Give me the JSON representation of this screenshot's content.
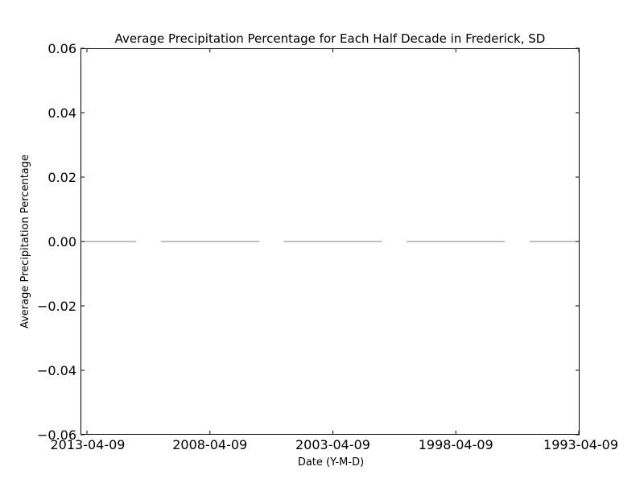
{
  "chart_data": {
    "type": "bar",
    "title": "Average Precipitation Percentage for Each Half Decade in Frederick, SD",
    "xlabel": "Date (Y-M-D)",
    "ylabel": "Average Precipitation Percentage",
    "categories": [
      "2013-04-09",
      "2008-04-09",
      "2003-04-09",
      "1998-04-09",
      "1993-04-09"
    ],
    "values": [
      0.0,
      0.0,
      0.0,
      0.0,
      0.0
    ],
    "ylim": [
      -0.06,
      0.06
    ],
    "yticks": [
      -0.06,
      -0.04,
      -0.02,
      0.0,
      0.02,
      0.04,
      0.06
    ],
    "ytick_labels": [
      "−0.06",
      "−0.04",
      "−0.02",
      "0.00",
      "0.02",
      "0.04",
      "0.06"
    ],
    "grid": false,
    "bar_color": "#808080"
  }
}
